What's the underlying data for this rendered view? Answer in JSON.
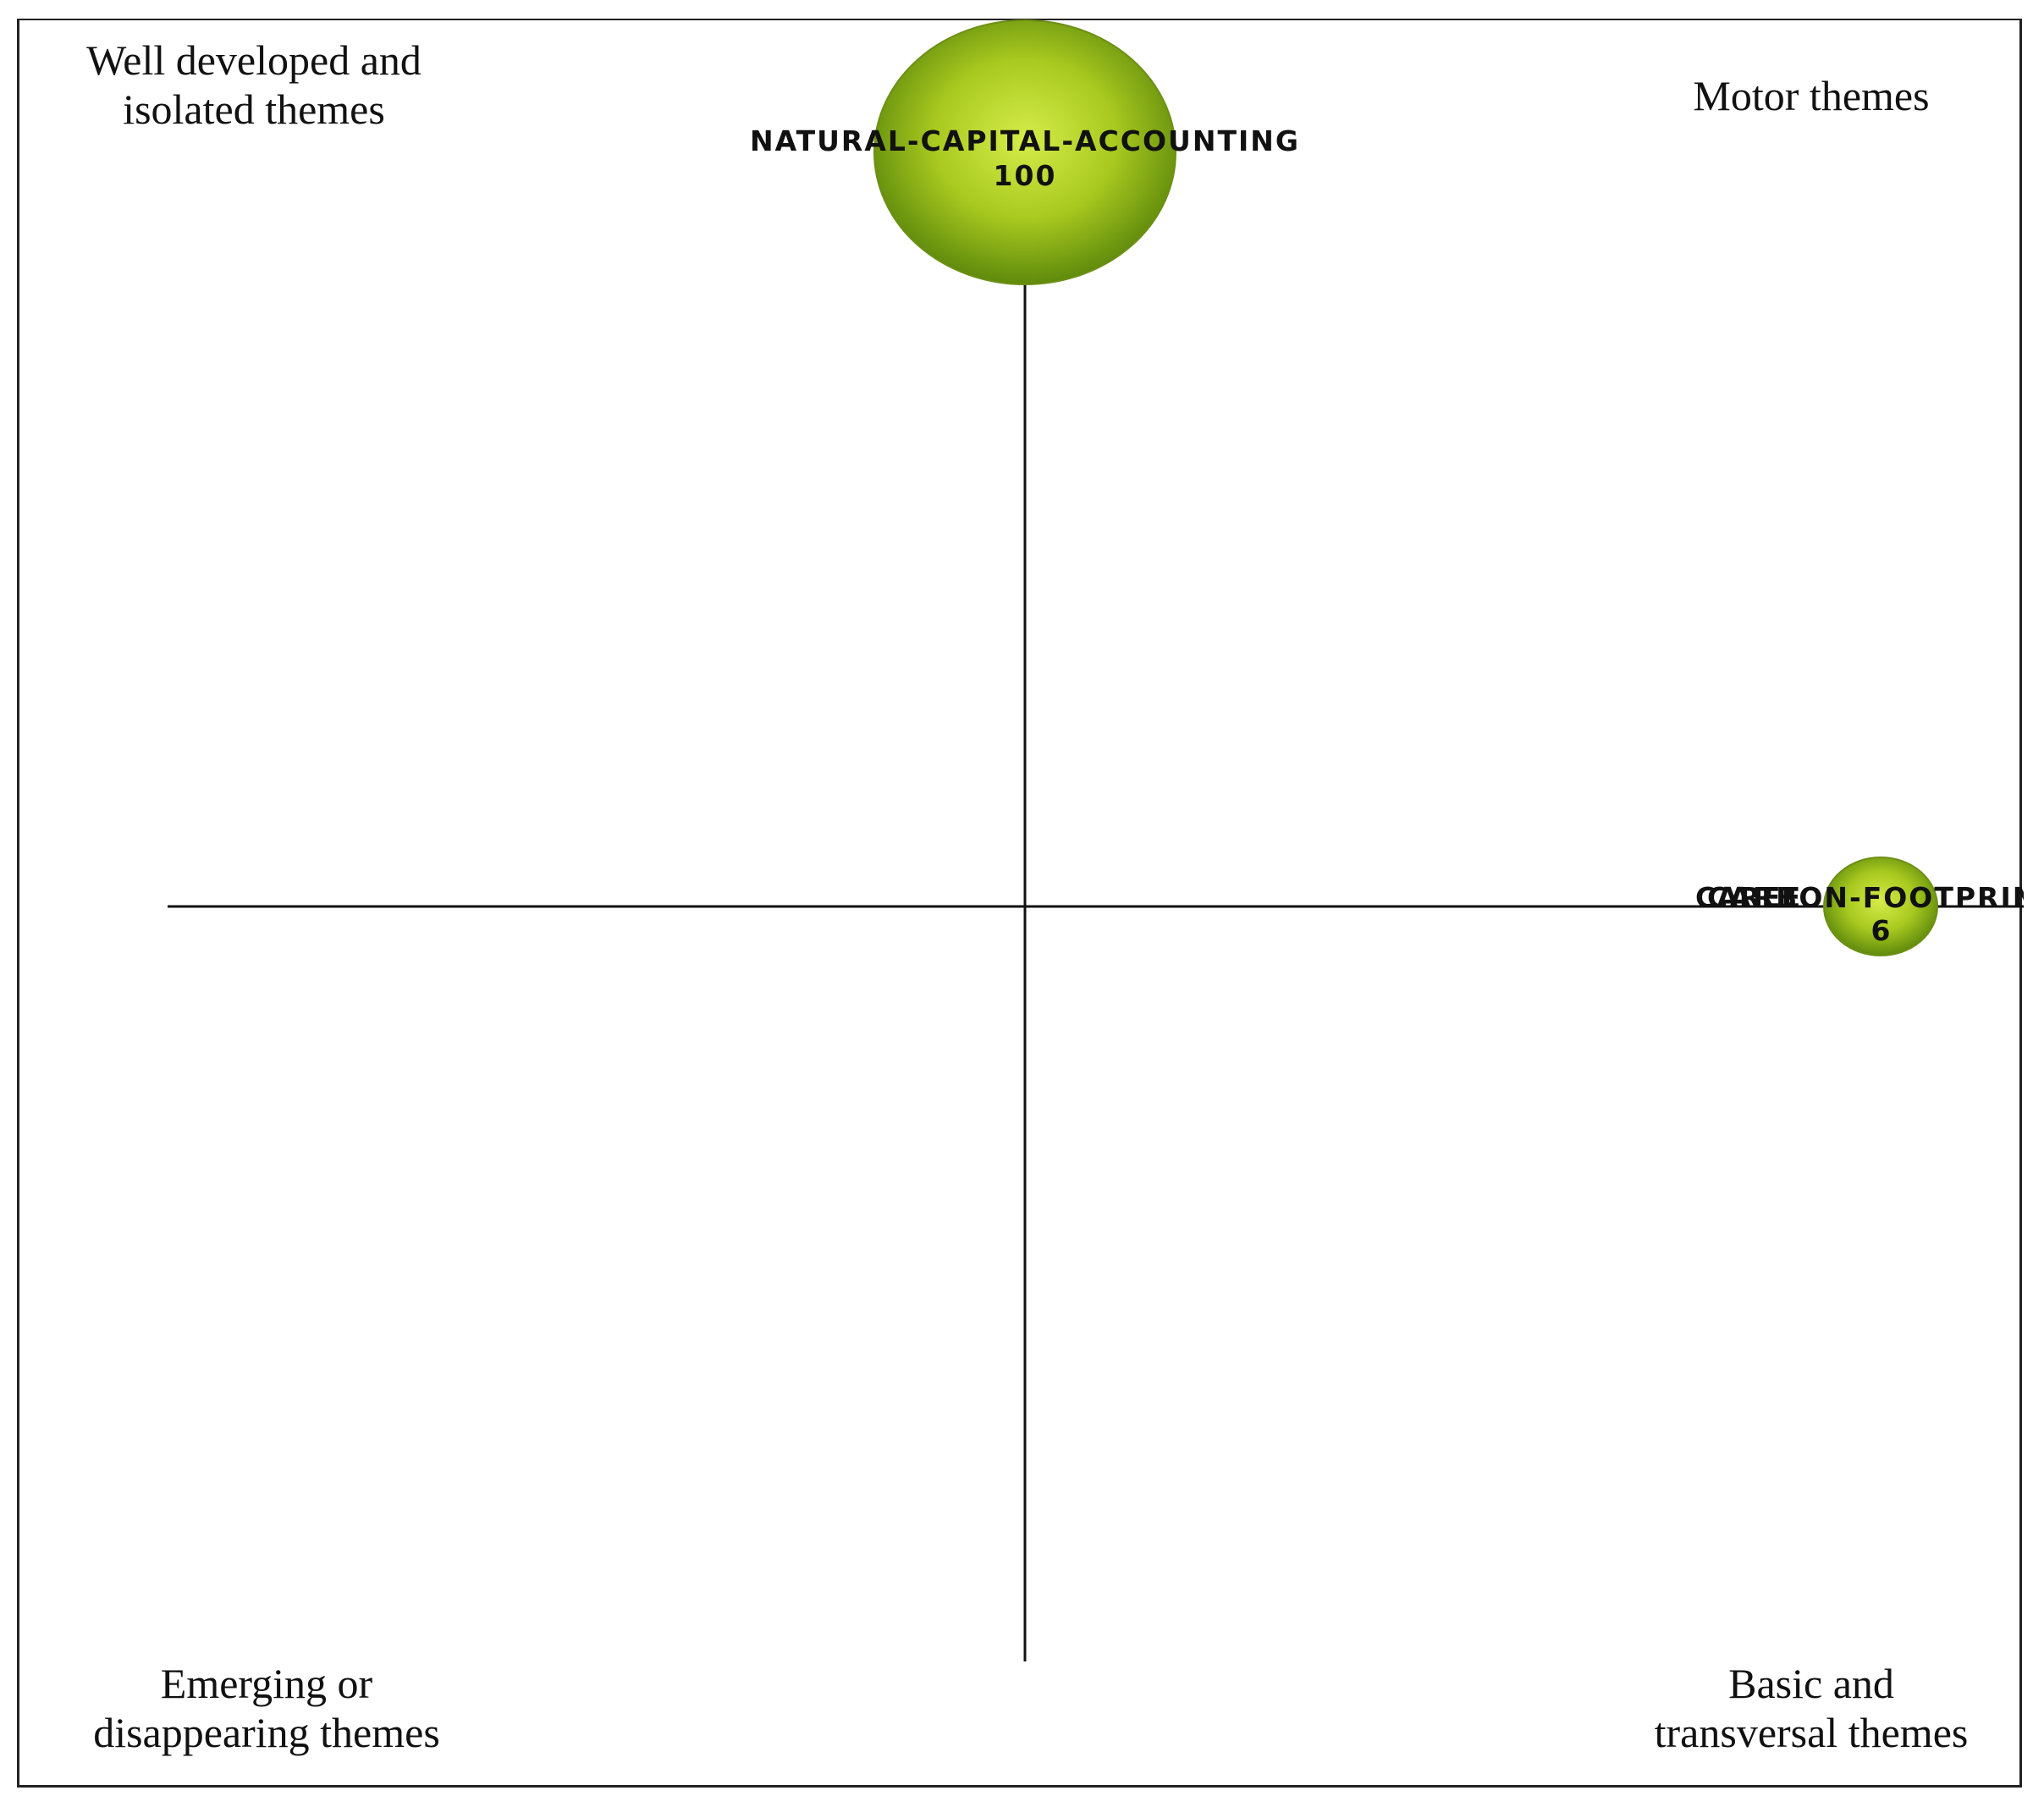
{
  "quadrants": {
    "top_left": [
      "Well developed and",
      "isolated themes"
    ],
    "top_right": [
      "Motor themes"
    ],
    "bottom_left": [
      "Emerging or",
      "disappearing themes"
    ],
    "bottom_right": [
      "Basic and",
      "transversal themes"
    ]
  },
  "themes": [
    {
      "name": "NATURAL-CAPITAL-ACCOUNTING",
      "value": "100",
      "centrality": 0.5,
      "density": 0.95
    },
    {
      "name": "CARBON-FOOTPRINT",
      "value": "6",
      "centrality": 1.0,
      "density": 0.5,
      "overlap_label": "CAREE"
    }
  ],
  "colors": {
    "bubble_light": "#c9e23a",
    "bubble_mid": "#9cc01b",
    "bubble_dark": "#5f8a0c",
    "axis": "#111111"
  }
}
